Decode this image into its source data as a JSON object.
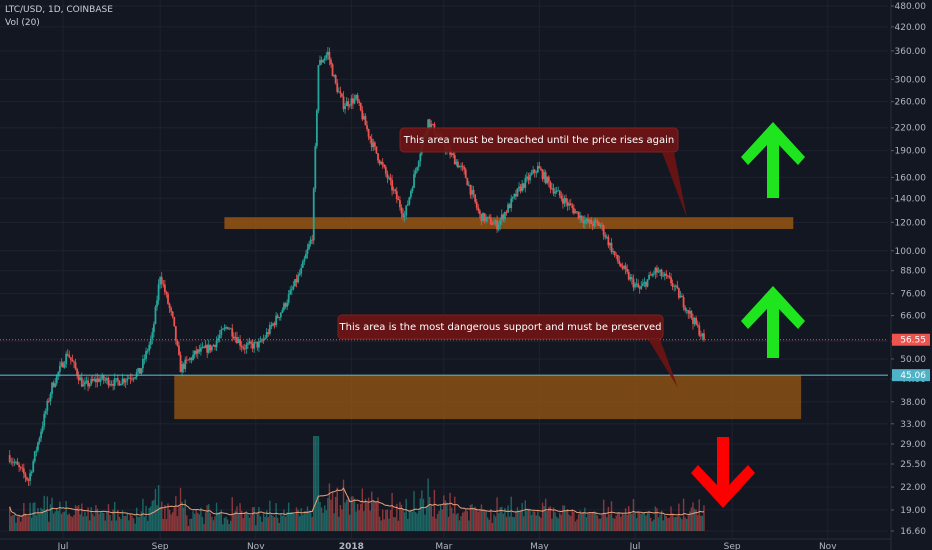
{
  "header": {
    "symbol": "LTC/USD, 1D, COINBASE",
    "indicator": "Vol (20)"
  },
  "colors": {
    "background": "#131722",
    "up": "#26a69a",
    "down": "#ef5350",
    "grid": "#1e2230",
    "zone": "#a05a12",
    "callout": "#6e1414",
    "arrow_up": "#1fe51f",
    "arrow_down": "#ff0000",
    "line_cyan": "#4fb3c7",
    "vol_ma": "#e9a07b"
  },
  "chart_data": {
    "type": "candlestick",
    "title": "LTC/USD, 1D, COINBASE",
    "indicator": "Vol (20)",
    "y_scale": "log",
    "price_ticks": [
      "480.00",
      "420.00",
      "360.00",
      "300.00",
      "260.00",
      "220.00",
      "190.00",
      "160.00",
      "140.00",
      "120.00",
      "100.00",
      "88.00",
      "76.00",
      "66.00",
      "56.00",
      "50.00",
      "44.00",
      "38.00",
      "33.00",
      "29.00",
      "25.50",
      "22.00",
      "19.00",
      "16.60"
    ],
    "x_ticks": [
      "Jul",
      "Sep",
      "Nov",
      "2018",
      "Mar",
      "May",
      "Jul",
      "Sep",
      "Nov"
    ],
    "price_markers": [
      {
        "label": "56.55",
        "price": 56.55,
        "color": "#ef5350"
      },
      {
        "label": "45.06",
        "price": 45.06,
        "color": "#4fb3c7"
      }
    ],
    "zones": [
      {
        "name": "resistance",
        "low": 115,
        "high": 124,
        "from": "Oct 2017",
        "to": "Oct 2018"
      },
      {
        "name": "support",
        "low": 34,
        "high": 45,
        "from": "Sep 2017",
        "to": "Oct 2018"
      }
    ],
    "annotations": [
      "This area must be breached until the price rises again",
      "This area is the most dangerous support and must be preserved"
    ],
    "price_path": [
      [
        "2017-05-28",
        27
      ],
      [
        "2017-06-10",
        23
      ],
      [
        "2017-06-25",
        42
      ],
      [
        "2017-07-05",
        52
      ],
      [
        "2017-07-15",
        42
      ],
      [
        "2017-07-25",
        44
      ],
      [
        "2017-08-05",
        43
      ],
      [
        "2017-08-20",
        46
      ],
      [
        "2017-08-28",
        58
      ],
      [
        "2017-09-02",
        86
      ],
      [
        "2017-09-10",
        64
      ],
      [
        "2017-09-15",
        47
      ],
      [
        "2017-09-25",
        52
      ],
      [
        "2017-10-05",
        54
      ],
      [
        "2017-10-15",
        62
      ],
      [
        "2017-10-25",
        54
      ],
      [
        "2017-11-05",
        55
      ],
      [
        "2017-11-20",
        70
      ],
      [
        "2017-12-01",
        88
      ],
      [
        "2017-12-08",
        110
      ],
      [
        "2017-12-12",
        330
      ],
      [
        "2017-12-18",
        355
      ],
      [
        "2017-12-23",
        290
      ],
      [
        "2017-12-28",
        255
      ],
      [
        "2018-01-05",
        265
      ],
      [
        "2018-01-15",
        200
      ],
      [
        "2018-01-25",
        160
      ],
      [
        "2018-02-05",
        125
      ],
      [
        "2018-02-15",
        190
      ],
      [
        "2018-02-20",
        230
      ],
      [
        "2018-03-01",
        200
      ],
      [
        "2018-03-15",
        165
      ],
      [
        "2018-03-25",
        125
      ],
      [
        "2018-04-05",
        118
      ],
      [
        "2018-04-20",
        150
      ],
      [
        "2018-05-01",
        170
      ],
      [
        "2018-05-10",
        150
      ],
      [
        "2018-05-20",
        135
      ],
      [
        "2018-06-01",
        120
      ],
      [
        "2018-06-10",
        118
      ],
      [
        "2018-06-20",
        95
      ],
      [
        "2018-06-30",
        82
      ],
      [
        "2018-07-05",
        78
      ],
      [
        "2018-07-15",
        88
      ],
      [
        "2018-07-25",
        82
      ],
      [
        "2018-08-05",
        68
      ],
      [
        "2018-08-15",
        56.55
      ]
    ]
  }
}
